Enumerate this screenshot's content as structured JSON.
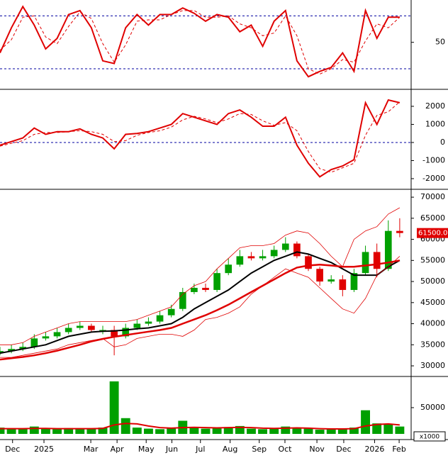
{
  "chart_data": [
    {
      "type": "line",
      "xlim": [
        0,
        72
      ],
      "ylim": [
        15,
        82
      ],
      "yticks": [
        50
      ],
      "reference_lines": [
        70,
        30
      ],
      "reference_color": "#0000a0",
      "x": [
        0,
        2,
        4,
        6,
        8,
        10,
        12,
        14,
        16,
        18,
        20,
        22,
        24,
        26,
        28,
        30,
        32,
        34,
        36,
        38,
        40,
        42,
        44,
        46,
        48,
        50,
        52,
        54,
        56,
        58,
        60,
        62,
        64,
        66,
        68,
        70
      ],
      "series": [
        {
          "color": "#e00000",
          "width": 2,
          "dash": false,
          "values": [
            42,
            61,
            77,
            63,
            45,
            53,
            71,
            74,
            61,
            36,
            34,
            61,
            71,
            63,
            71,
            71,
            76,
            72,
            66,
            71,
            69,
            58,
            63,
            47,
            66,
            74,
            36,
            24,
            28,
            31,
            42,
            28,
            74,
            53,
            69,
            69
          ]
        },
        {
          "color": "#e00000",
          "width": 1,
          "dash": true,
          "values": [
            44,
            52,
            69,
            70,
            54,
            49,
            62,
            73,
            68,
            49,
            35,
            48,
            66,
            67,
            67,
            71,
            74,
            74,
            69,
            69,
            70,
            64,
            61,
            55,
            57,
            70,
            55,
            30,
            26,
            30,
            37,
            35,
            51,
            64,
            61,
            69
          ]
        }
      ]
    },
    {
      "type": "line",
      "xlim": [
        0,
        72
      ],
      "ylim": [
        -2550,
        2900
      ],
      "yticks": [
        2000,
        1000,
        0,
        -1000,
        -2000
      ],
      "reference_lines": [
        0
      ],
      "reference_color": "#0000a0",
      "x": [
        0,
        2,
        4,
        6,
        8,
        10,
        12,
        14,
        16,
        18,
        20,
        22,
        24,
        26,
        28,
        30,
        32,
        34,
        36,
        38,
        40,
        42,
        44,
        46,
        48,
        50,
        52,
        54,
        56,
        58,
        60,
        62,
        64,
        66,
        68,
        70
      ],
      "series": [
        {
          "color": "#e00000",
          "width": 2,
          "dash": false,
          "values": [
            -150,
            50,
            250,
            800,
            450,
            600,
            600,
            750,
            450,
            250,
            -350,
            450,
            500,
            600,
            800,
            1000,
            1600,
            1400,
            1200,
            1000,
            1600,
            1800,
            1400,
            900,
            900,
            1400,
            -150,
            -1150,
            -1900,
            -1500,
            -1300,
            -950,
            2200,
            1000,
            2350,
            2200
          ]
        },
        {
          "color": "#e00000",
          "width": 1,
          "dash": true,
          "values": [
            -200,
            -50,
            100,
            450,
            550,
            550,
            600,
            650,
            600,
            450,
            50,
            100,
            400,
            550,
            650,
            850,
            1250,
            1450,
            1300,
            1100,
            1300,
            1600,
            1550,
            1200,
            950,
            1100,
            650,
            -500,
            -1450,
            -1650,
            -1400,
            -1150,
            400,
            1500,
            1700,
            2250
          ]
        }
      ]
    },
    {
      "type": "candlestick",
      "xlim": [
        0,
        72
      ],
      "ylim": [
        27650,
        71700
      ],
      "yticks": [
        70000,
        65000,
        60000,
        55000,
        50000,
        45000,
        40000,
        35000,
        30000
      ],
      "last_price": {
        "value": 61500,
        "label": "61500.00"
      },
      "up_color": "#00a000",
      "down_color": "#e00000",
      "x": [
        0,
        2,
        4,
        6,
        8,
        10,
        12,
        14,
        16,
        18,
        20,
        22,
        24,
        26,
        28,
        30,
        32,
        34,
        36,
        38,
        40,
        42,
        44,
        46,
        48,
        50,
        52,
        54,
        56,
        58,
        60,
        62,
        64,
        66,
        68,
        70
      ],
      "open": [
        33000,
        33500,
        34000,
        34500,
        36500,
        37000,
        38000,
        39000,
        39500,
        38500,
        38500,
        37000,
        39000,
        40000,
        40500,
        42000,
        43500,
        47500,
        48500,
        48000,
        52000,
        54000,
        56000,
        55500,
        56000,
        57500,
        59000,
        56000,
        53000,
        50000,
        50500,
        48000,
        52000,
        57000,
        53000,
        62000
      ],
      "high": [
        34500,
        35000,
        35500,
        37500,
        38000,
        39000,
        40000,
        40500,
        40000,
        39500,
        39500,
        40000,
        41000,
        41500,
        43000,
        44500,
        48500,
        49500,
        49500,
        53000,
        55500,
        57500,
        57000,
        57500,
        58500,
        60500,
        59500,
        56500,
        53500,
        51500,
        51500,
        53000,
        58500,
        59000,
        64500,
        65000
      ],
      "low": [
        32500,
        33000,
        33500,
        34000,
        36000,
        36500,
        37500,
        38500,
        38000,
        37500,
        32500,
        36500,
        38500,
        39500,
        40000,
        41500,
        43000,
        47000,
        47500,
        47500,
        51500,
        53500,
        55000,
        55000,
        55500,
        57000,
        55500,
        52500,
        49000,
        49500,
        46500,
        47500,
        51500,
        51000,
        52500,
        60500
      ],
      "close": [
        33500,
        34000,
        34500,
        36500,
        37000,
        38000,
        39000,
        39500,
        38500,
        38500,
        37000,
        39000,
        40000,
        40500,
        42000,
        43500,
        47500,
        48500,
        48000,
        52000,
        54000,
        56000,
        55500,
        56000,
        57500,
        59000,
        56000,
        53000,
        50000,
        50500,
        48000,
        52000,
        57000,
        53000,
        62000,
        61500
      ],
      "series": [
        {
          "color": "#000000",
          "width": 2,
          "dash": false,
          "values": [
            33000,
            33500,
            34000,
            34500,
            35000,
            36000,
            37000,
            37500,
            38000,
            38200,
            38300,
            38500,
            38800,
            39000,
            39500,
            40000,
            41500,
            43500,
            45000,
            46500,
            48000,
            50000,
            52000,
            53500,
            55000,
            56000,
            57000,
            56500,
            55500,
            54500,
            53000,
            51500,
            51500,
            51500,
            53500,
            55000
          ]
        },
        {
          "color": "#e00000",
          "width": 2.5,
          "dash": false,
          "values": [
            31500,
            31800,
            32100,
            32500,
            33000,
            33600,
            34300,
            35000,
            35800,
            36400,
            36900,
            37300,
            37700,
            38100,
            38500,
            39000,
            40000,
            41000,
            42000,
            43200,
            44500,
            46000,
            47500,
            49000,
            50500,
            52000,
            53300,
            53800,
            54000,
            53800,
            53500,
            53500,
            53800,
            54100,
            54500,
            55000
          ]
        },
        {
          "color": "#e00000",
          "width": 0.8,
          "dash": false,
          "values": [
            35000,
            35000,
            35500,
            37000,
            38000,
            39000,
            40000,
            40500,
            40500,
            40500,
            40500,
            40500,
            41000,
            42000,
            43000,
            44000,
            47000,
            49000,
            50000,
            53000,
            55500,
            58000,
            58500,
            58500,
            59000,
            61000,
            62000,
            61500,
            59000,
            56000,
            53500,
            60000,
            62000,
            63000,
            66000,
            67500
          ]
        },
        {
          "color": "#e00000",
          "width": 0.8,
          "dash": false,
          "values": [
            32000,
            32000,
            32500,
            33000,
            33500,
            34000,
            35000,
            35500,
            36000,
            36500,
            34500,
            35000,
            36500,
            37000,
            37500,
            37500,
            37000,
            38500,
            41000,
            41500,
            42500,
            44000,
            47000,
            49000,
            51000,
            53000,
            52000,
            51000,
            48500,
            46000,
            43500,
            42500,
            46000,
            51500,
            53500,
            56000
          ]
        }
      ]
    },
    {
      "type": "bar",
      "xlim": [
        0,
        72
      ],
      "ylim": [
        0,
        108000
      ],
      "yticks": [
        50000
      ],
      "unit_label": "x1000",
      "color": "#00a000",
      "x": [
        0,
        2,
        4,
        6,
        8,
        10,
        12,
        14,
        16,
        18,
        20,
        22,
        24,
        26,
        28,
        30,
        32,
        34,
        36,
        38,
        40,
        42,
        44,
        46,
        48,
        50,
        52,
        54,
        56,
        58,
        60,
        62,
        64,
        66,
        68,
        70
      ],
      "values": [
        12000,
        9000,
        10000,
        14000,
        10000,
        9000,
        11000,
        9000,
        10000,
        12000,
        100000,
        30000,
        12000,
        10000,
        9000,
        11000,
        25000,
        12000,
        10000,
        11000,
        13000,
        15000,
        10000,
        9000,
        11000,
        14000,
        12000,
        10000,
        8000,
        9000,
        10000,
        12000,
        45000,
        20000,
        18000,
        14000
      ],
      "series": [
        {
          "color": "#e00000",
          "width": 2,
          "dash": false,
          "values": [
            10000,
            10000,
            10000,
            10500,
            10500,
            10000,
            10000,
            10000,
            10000,
            10500,
            17000,
            20000,
            19000,
            15000,
            12000,
            11000,
            12000,
            12500,
            12000,
            11500,
            12000,
            12500,
            12000,
            11000,
            10500,
            11000,
            11500,
            11000,
            10000,
            9500,
            9500,
            10000,
            15000,
            18000,
            19000,
            17000
          ]
        }
      ],
      "xticks": [
        {
          "value": 2.2,
          "label": "Dec"
        },
        {
          "value": 7.7,
          "label": "2025"
        },
        {
          "value": 15.9,
          "label": "Mar"
        },
        {
          "value": 20.5,
          "label": "Apr"
        },
        {
          "value": 25.6,
          "label": "May"
        },
        {
          "value": 30.1,
          "label": "Jun"
        },
        {
          "value": 35.1,
          "label": "Jul"
        },
        {
          "value": 40.3,
          "label": "Aug"
        },
        {
          "value": 45.4,
          "label": "Sep"
        },
        {
          "value": 49.9,
          "label": "Oct"
        },
        {
          "value": 55.5,
          "label": "Nov"
        },
        {
          "value": 60.2,
          "label": "Dec"
        },
        {
          "value": 65.6,
          "label": "2026"
        },
        {
          "value": 69.9,
          "label": "Feb"
        }
      ]
    }
  ]
}
